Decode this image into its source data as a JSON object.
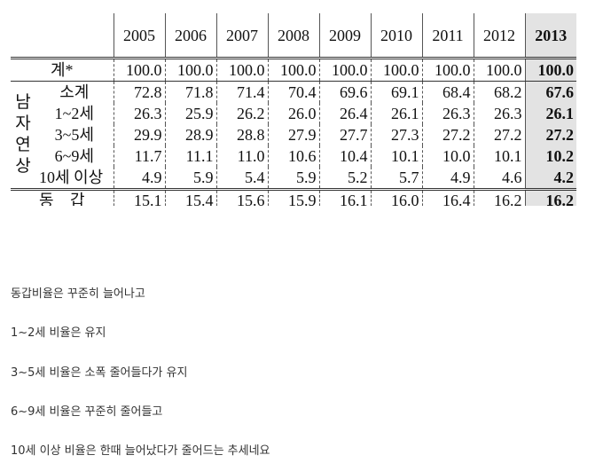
{
  "table": {
    "header": [
      "2005",
      "2006",
      "2007",
      "2008",
      "2009",
      "2010",
      "2011",
      "2012",
      "2013"
    ],
    "total": {
      "label": "계*",
      "values": [
        "100.0",
        "100.0",
        "100.0",
        "100.0",
        "100.0",
        "100.0",
        "100.0",
        "100.0",
        "100.0"
      ]
    },
    "group": {
      "label": "남자연상",
      "rows": [
        {
          "label": "소계",
          "values": [
            "72.8",
            "71.8",
            "71.4",
            "70.4",
            "69.6",
            "69.1",
            "68.4",
            "68.2",
            "67.6"
          ]
        },
        {
          "label": "1~2세",
          "values": [
            "26.3",
            "25.9",
            "26.2",
            "26.0",
            "26.4",
            "26.1",
            "26.3",
            "26.3",
            "26.1"
          ]
        },
        {
          "label": "3~5세",
          "values": [
            "29.9",
            "28.9",
            "28.8",
            "27.9",
            "27.7",
            "27.3",
            "27.2",
            "27.2",
            "27.2"
          ]
        },
        {
          "label": "6~9세",
          "values": [
            "11.7",
            "11.1",
            "11.0",
            "10.6",
            "10.4",
            "10.1",
            "10.0",
            "10.1",
            "10.2"
          ]
        },
        {
          "label": "10세 이상",
          "values": [
            "4.9",
            "5.9",
            "5.4",
            "5.9",
            "5.2",
            "5.7",
            "4.9",
            "4.6",
            "4.2"
          ]
        }
      ]
    },
    "same_age": {
      "label": "동 갑",
      "values": [
        "15.1",
        "15.4",
        "15.6",
        "15.9",
        "16.1",
        "16.0",
        "16.4",
        "16.2",
        "16.2"
      ]
    }
  },
  "paragraphs": [
    "동갑비율은 꾸준히 늘어나고",
    "1~2세 비율은 유지",
    "3~5세 비율은 소폭 줄어들다가 유지",
    "6~9세 비율은 꾸준히 줄어들고",
    "10세 이상 비율은 한때 늘어났다가 줄어드는 추세네요"
  ]
}
